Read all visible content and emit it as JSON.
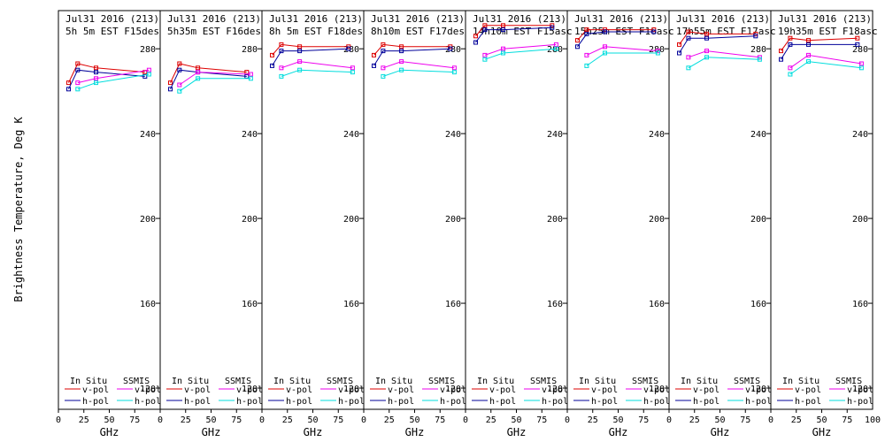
{
  "legend": {
    "insitu_label": "In Situ",
    "ssmis_label": "SSMIS",
    "vpol_label": "v-pol",
    "hpol_label": "h-pol"
  },
  "colors": {
    "insitu_v": "#dd0000",
    "insitu_h": "#000099",
    "ssmis_v": "#ee00ee",
    "ssmis_h": "#00dddd",
    "axis": "#000000"
  },
  "chart_data": {
    "type": "line",
    "ylabel": "Brightness Temperature, Deg K",
    "xlabel": "GHz",
    "xlim": [
      0,
      100
    ],
    "ylim": [
      110,
      298
    ],
    "yticks": [
      120,
      160,
      200,
      240,
      280
    ],
    "xticks": [
      0,
      25,
      50,
      75
    ],
    "x_last_tick_label": "100",
    "panels": [
      {
        "title1": "Jul31 2016 (213)",
        "title2": "5h 5m  EST F15des",
        "series": [
          {
            "name": "In Situ v-pol",
            "x": [
              10,
              19,
              37,
              85
            ],
            "y": [
              264,
              273,
              271,
              269
            ]
          },
          {
            "name": "In Situ h-pol",
            "x": [
              10,
              19,
              37,
              85
            ],
            "y": [
              261,
              270,
              269,
              267
            ]
          },
          {
            "name": "SSMIS v-pol",
            "x": [
              19,
              37,
              89
            ],
            "y": [
              264,
              266,
              270
            ]
          },
          {
            "name": "SSMIS h-pol",
            "x": [
              19,
              37,
              89
            ],
            "y": [
              261,
              264,
              268
            ]
          }
        ]
      },
      {
        "title1": "Jul31 2016 (213)",
        "title2": "5h35m  EST F16des",
        "series": [
          {
            "name": "In Situ v-pol",
            "x": [
              10,
              19,
              37,
              85
            ],
            "y": [
              264,
              273,
              271,
              269
            ]
          },
          {
            "name": "In Situ h-pol",
            "x": [
              10,
              19,
              37,
              85
            ],
            "y": [
              261,
              270,
              269,
              267
            ]
          },
          {
            "name": "SSMIS v-pol",
            "x": [
              19,
              37,
              89
            ],
            "y": [
              263,
              269,
              268
            ]
          },
          {
            "name": "SSMIS h-pol",
            "x": [
              19,
              37,
              89
            ],
            "y": [
              260,
              266,
              266
            ]
          }
        ]
      },
      {
        "title1": "Jul31 2016 (213)",
        "title2": "8h 5m  EST F18des",
        "series": [
          {
            "name": "In Situ v-pol",
            "x": [
              10,
              19,
              37,
              85
            ],
            "y": [
              277,
              282,
              281,
              281
            ]
          },
          {
            "name": "In Situ h-pol",
            "x": [
              10,
              19,
              37,
              85
            ],
            "y": [
              272,
              279,
              279,
              280
            ]
          },
          {
            "name": "SSMIS v-pol",
            "x": [
              19,
              37,
              89
            ],
            "y": [
              271,
              274,
              271
            ]
          },
          {
            "name": "SSMIS h-pol",
            "x": [
              19,
              37,
              89
            ],
            "y": [
              267,
              270,
              269
            ]
          }
        ]
      },
      {
        "title1": "Jul31 2016 (213)",
        "title2": "8h10m  EST F17des",
        "series": [
          {
            "name": "In Situ v-pol",
            "x": [
              10,
              19,
              37,
              85
            ],
            "y": [
              277,
              282,
              281,
              281
            ]
          },
          {
            "name": "In Situ h-pol",
            "x": [
              10,
              19,
              37,
              85
            ],
            "y": [
              272,
              279,
              279,
              280
            ]
          },
          {
            "name": "SSMIS v-pol",
            "x": [
              19,
              37,
              89
            ],
            "y": [
              271,
              274,
              271
            ]
          },
          {
            "name": "SSMIS h-pol",
            "x": [
              19,
              37,
              89
            ],
            "y": [
              267,
              270,
              269
            ]
          }
        ]
      },
      {
        "title1": "Jul31 2016 (213)",
        "title2": "14h10m EST F15asc",
        "series": [
          {
            "name": "In Situ v-pol",
            "x": [
              10,
              19,
              37,
              85
            ],
            "y": [
              286,
              291,
              291,
              291
            ]
          },
          {
            "name": "In Situ h-pol",
            "x": [
              10,
              19,
              37,
              85
            ],
            "y": [
              283,
              289,
              289,
              290
            ]
          },
          {
            "name": "SSMIS v-pol",
            "x": [
              19,
              37,
              89
            ],
            "y": [
              277,
              280,
              282
            ]
          },
          {
            "name": "SSMIS h-pol",
            "x": [
              19,
              37,
              89
            ],
            "y": [
              275,
              278,
              280
            ]
          }
        ]
      },
      {
        "title1": "Jul31 2016 (213)",
        "title2": "15h25m EST F16asc",
        "series": [
          {
            "name": "In Situ v-pol",
            "x": [
              10,
              19,
              37,
              85
            ],
            "y": [
              284,
              289,
              289,
              289
            ]
          },
          {
            "name": "In Situ h-pol",
            "x": [
              10,
              19,
              37,
              85
            ],
            "y": [
              281,
              287,
              288,
              288
            ]
          },
          {
            "name": "SSMIS v-pol",
            "x": [
              19,
              37,
              89
            ],
            "y": [
              277,
              281,
              279
            ]
          },
          {
            "name": "SSMIS h-pol",
            "x": [
              19,
              37,
              89
            ],
            "y": [
              272,
              278,
              278
            ]
          }
        ]
      },
      {
        "title1": "Jul31 2016 (213)",
        "title2": "17h55m EST F17asc",
        "series": [
          {
            "name": "In Situ v-pol",
            "x": [
              10,
              19,
              37,
              85
            ],
            "y": [
              282,
              288,
              287,
              287
            ]
          },
          {
            "name": "In Situ h-pol",
            "x": [
              10,
              19,
              37,
              85
            ],
            "y": [
              278,
              285,
              285,
              286
            ]
          },
          {
            "name": "SSMIS v-pol",
            "x": [
              19,
              37,
              89
            ],
            "y": [
              276,
              279,
              276
            ]
          },
          {
            "name": "SSMIS h-pol",
            "x": [
              19,
              37,
              89
            ],
            "y": [
              271,
              276,
              275
            ]
          }
        ]
      },
      {
        "title1": "Jul31 2016 (213)",
        "title2": "19h35m EST F18asc",
        "series": [
          {
            "name": "In Situ v-pol",
            "x": [
              10,
              19,
              37,
              85
            ],
            "y": [
              279,
              285,
              284,
              285
            ]
          },
          {
            "name": "In Situ h-pol",
            "x": [
              10,
              19,
              37,
              85
            ],
            "y": [
              275,
              282,
              282,
              282
            ]
          },
          {
            "name": "SSMIS v-pol",
            "x": [
              19,
              37,
              89
            ],
            "y": [
              271,
              277,
              273
            ]
          },
          {
            "name": "SSMIS h-pol",
            "x": [
              19,
              37,
              89
            ],
            "y": [
              268,
              274,
              271
            ]
          }
        ]
      }
    ]
  }
}
